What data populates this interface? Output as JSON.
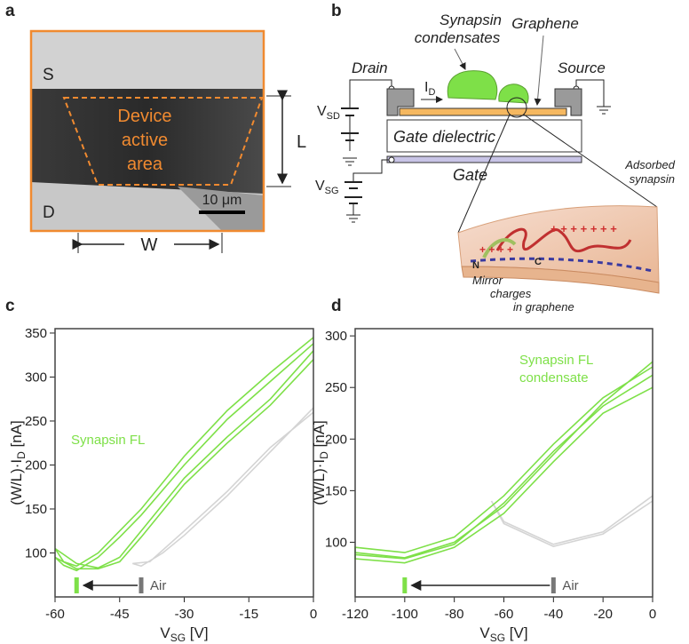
{
  "panel_a": {
    "label": "a",
    "top_label": "S",
    "bottom_label": "D",
    "region": [
      "Device",
      "active",
      "area"
    ],
    "height_label": "L",
    "scale_bar": "10 μm",
    "width_label": "W"
  },
  "panel_b": {
    "label": "b",
    "condensates": [
      "Synapsin",
      "condensates"
    ],
    "graphene": "Graphene",
    "drain": "Drain",
    "source": "Source",
    "current": [
      "I",
      "D"
    ],
    "vsd": [
      "V",
      "SD"
    ],
    "dielectric": "Gate dielectric",
    "gate": "Gate",
    "vsg": [
      "V",
      "SG"
    ],
    "adsorbed": [
      "Adsorbed",
      "synapsin"
    ],
    "n_term": "N",
    "c_term": "C",
    "mirror": [
      "Mirror",
      "charges",
      "in graphene"
    ]
  },
  "chart_data": [
    {
      "type": "line",
      "panel": "c",
      "xlabel": [
        "V",
        "SG",
        " [V]"
      ],
      "ylabel": [
        "(W/L)·I",
        "D",
        " [nA]"
      ],
      "xlim": [
        -60,
        0
      ],
      "ylim": [
        50,
        355
      ],
      "xticks": [
        -60,
        -45,
        -30,
        -15,
        0
      ],
      "yticks": [
        100,
        150,
        200,
        250,
        300,
        350
      ],
      "series": [
        {
          "name": "Synapsin FL",
          "color": "#7ee048",
          "x": [
            0,
            -10,
            -20,
            -30,
            -40,
            -45,
            -50,
            -55,
            -60,
            -58,
            -55,
            -50,
            -45,
            -40,
            -30,
            -20,
            -10,
            0
          ],
          "values": [
            330,
            275,
            232,
            185,
            125,
            95,
            83,
            88,
            105,
            90,
            85,
            100,
            125,
            150,
            210,
            262,
            305,
            345
          ]
        },
        {
          "color": "#7ee048",
          "x": [
            0,
            -10,
            -20,
            -30,
            -40,
            -45,
            -50,
            -55,
            -60,
            -58,
            -55,
            -50,
            -45,
            -40,
            -30,
            -20,
            -10,
            0
          ],
          "values": [
            320,
            268,
            225,
            178,
            118,
            90,
            82,
            82,
            95,
            86,
            80,
            95,
            118,
            143,
            200,
            252,
            295,
            338
          ]
        },
        {
          "color": "#d4d4d4",
          "x": [
            0,
            -10,
            -20,
            -30,
            -35,
            -40,
            -42,
            -38,
            -30,
            -20,
            -10,
            0
          ],
          "values": [
            265,
            215,
            165,
            120,
            100,
            85,
            88,
            90,
            125,
            170,
            220,
            260
          ]
        }
      ],
      "shift": {
        "from": -40,
        "to": -55,
        "label": "Air",
        "from_color": "#777777",
        "to_color": "#7ee048"
      }
    },
    {
      "type": "line",
      "panel": "d",
      "xlabel": [
        "V",
        "SG",
        " [V]"
      ],
      "ylabel": [
        "(W/L)·I",
        "D",
        " [nA]"
      ],
      "xlim": [
        -120,
        0
      ],
      "ylim": [
        47,
        307
      ],
      "xticks": [
        -120,
        -100,
        -80,
        -60,
        -40,
        -20,
        0
      ],
      "yticks": [
        100,
        150,
        200,
        250,
        300
      ],
      "series": [
        {
          "name": [
            "Synapsin FL",
            "condensate"
          ],
          "color": "#7ee048",
          "x": [
            0,
            -20,
            -40,
            -60,
            -80,
            -100,
            -120,
            -120,
            -100,
            -80,
            -60,
            -40,
            -20,
            0
          ],
          "values": [
            275,
            235,
            185,
            135,
            100,
            85,
            90,
            95,
            90,
            105,
            145,
            195,
            240,
            270
          ]
        },
        {
          "color": "#7ee048",
          "x": [
            0,
            -20,
            -40,
            -60,
            -80,
            -100,
            -120,
            -120,
            -100,
            -80,
            -60,
            -40,
            -20,
            0
          ],
          "values": [
            250,
            225,
            178,
            128,
            95,
            80,
            84,
            88,
            84,
            98,
            138,
            188,
            232,
            262
          ]
        },
        {
          "color": "#d4d4d4",
          "x": [
            0,
            -20,
            -40,
            -60,
            -65,
            -60,
            -40,
            -20,
            0
          ],
          "values": [
            145,
            110,
            98,
            120,
            140,
            118,
            96,
            108,
            140
          ]
        }
      ],
      "shift": {
        "from": -40,
        "to": -100,
        "label": "Air",
        "from_color": "#777777",
        "to_color": "#7ee048"
      }
    }
  ]
}
